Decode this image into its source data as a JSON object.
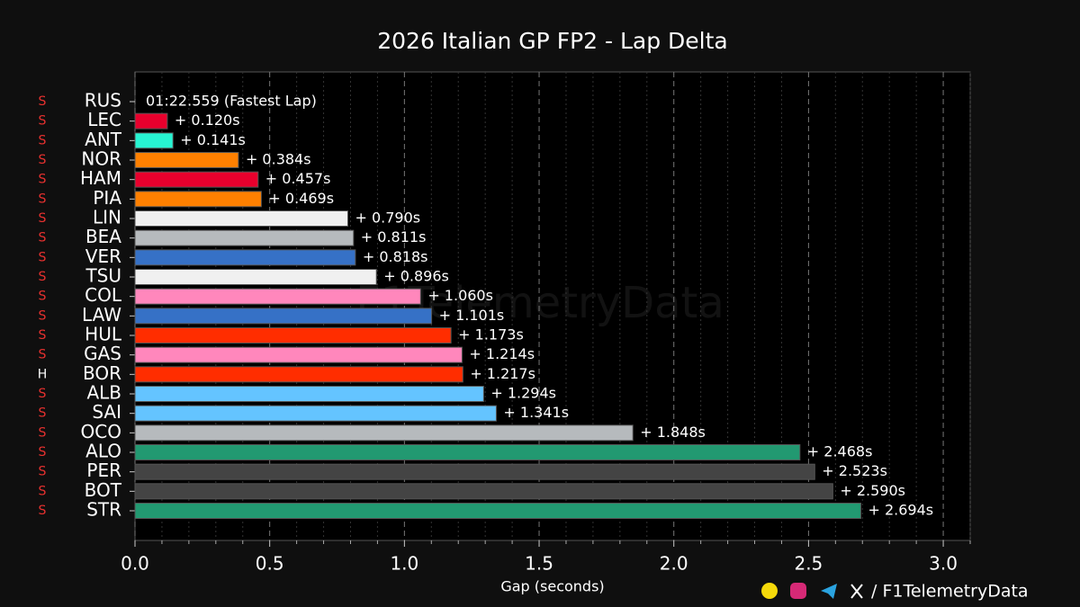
{
  "chart_data": {
    "type": "barh",
    "title": "2026 Italian GP FP2 - Lap Delta",
    "xlabel": "Gap (seconds)",
    "categories": [
      "RUS",
      "LEC",
      "ANT",
      "NOR",
      "HAM",
      "PIA",
      "LIN",
      "BEA",
      "VER",
      "TSU",
      "COL",
      "LAW",
      "HUL",
      "GAS",
      "BOR",
      "ALB",
      "SAI",
      "OCO",
      "ALO",
      "PER",
      "BOT",
      "STR"
    ],
    "values": [
      0,
      0.12,
      0.141,
      0.384,
      0.457,
      0.469,
      0.79,
      0.811,
      0.818,
      0.896,
      1.06,
      1.101,
      1.173,
      1.214,
      1.217,
      1.294,
      1.341,
      1.848,
      2.468,
      2.523,
      2.59,
      2.694
    ],
    "value_labels": [
      null,
      "+ 0.120s",
      "+ 0.141s",
      "+ 0.384s",
      "+ 0.457s",
      "+ 0.469s",
      "+ 0.790s",
      "+ 0.811s",
      "+ 0.818s",
      "+ 0.896s",
      "+ 1.060s",
      "+ 1.101s",
      "+ 1.173s",
      "+ 1.214s",
      "+ 1.217s",
      "+ 1.294s",
      "+ 1.341s",
      "+ 1.848s",
      "+ 2.468s",
      "+ 2.523s",
      "+ 2.590s",
      "+ 2.694s"
    ],
    "fastest_lap_label": "01:22.559 (Fastest Lap)",
    "colors": [
      "#27f4d2",
      "#e8002d",
      "#27f4d2",
      "#ff8000",
      "#e8002d",
      "#ff8000",
      "#f0f0f0",
      "#b6babd",
      "#3671c6",
      "#f0f0f0",
      "#ff87bc",
      "#3671c6",
      "#ff2d00",
      "#ff87bc",
      "#ff2d00",
      "#64c4ff",
      "#64c4ff",
      "#b6babd",
      "#229971",
      "#444444",
      "#444444",
      "#229971"
    ],
    "tyres": [
      "S",
      "S",
      "S",
      "S",
      "S",
      "S",
      "S",
      "S",
      "S",
      "S",
      "S",
      "S",
      "S",
      "S",
      "H",
      "S",
      "S",
      "S",
      "S",
      "S",
      "S",
      "S"
    ],
    "tyre_colors": {
      "S": "#e8312f",
      "H": "#ffffff"
    },
    "xlim": [
      0,
      3.1
    ],
    "xticks": [
      {
        "value": 0,
        "label": "0.0"
      },
      0.5,
      {
        "value": 1,
        "label": "1.0"
      },
      1.5,
      {
        "value": 2,
        "label": "2.0"
      },
      2.5,
      {
        "value": 3,
        "label": "3.0"
      }
    ],
    "xminor_ticks": [
      0.1,
      0.2,
      0.3,
      0.4,
      0.6,
      0.7,
      0.8,
      0.9,
      1.1,
      1.2,
      1.3,
      1.4,
      1.6,
      1.7,
      1.8,
      1.9,
      2.1,
      2.2,
      2.3,
      2.4,
      2.6,
      2.7,
      2.8,
      2.9,
      3.1
    ],
    "grid": true,
    "watermark": "F1TelemetryData",
    "footer": "/ F1TelemetryData"
  }
}
